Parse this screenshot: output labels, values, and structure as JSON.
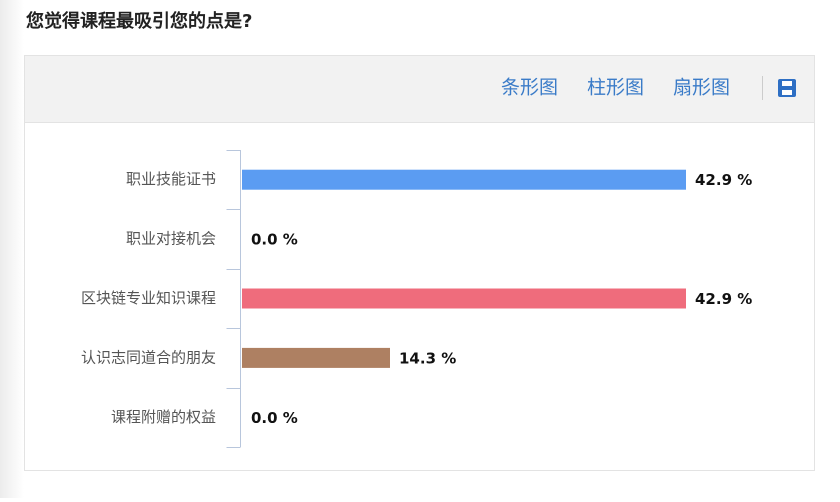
{
  "question": "您觉得课程最吸引您的点是?",
  "toolbar": {
    "options": [
      "条形图",
      "柱形图",
      "扇形图"
    ]
  },
  "chart_data": {
    "type": "bar",
    "orientation": "horizontal",
    "categories": [
      "职业技能证书",
      "职业对接机会",
      "区块链专业知识课程",
      "认识志同道合的朋友",
      "课程附赠的权益"
    ],
    "values": [
      42.9,
      0.0,
      42.9,
      14.3,
      0.0
    ],
    "value_labels": [
      "42.9 %",
      "0.0 %",
      "42.9 %",
      "14.3 %",
      "0.0 %"
    ],
    "colors": [
      "#5b9cf2",
      "#fac858",
      "#ef6c7c",
      "#ae8062",
      "#73c0de"
    ]
  }
}
